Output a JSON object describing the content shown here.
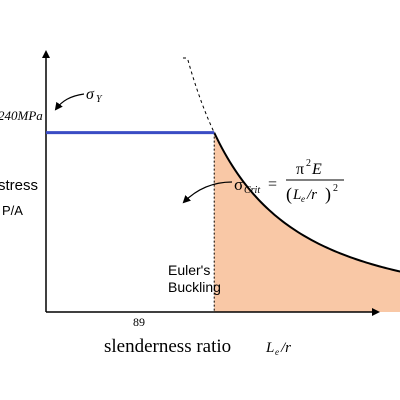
{
  "chart_data": {
    "type": "line",
    "xlabel_text": "slenderness ratio",
    "xlabel_symbol": "L",
    "xlabel_symbol_sub": "e",
    "xlabel_symbol_tail": "/r",
    "ylabel_line1": "stress",
    "ylabel_line2": "P/A",
    "yield_tick_label": "240MPa",
    "x_tick_label": "89",
    "yield_annotation": {
      "symbol": "σ",
      "sub": "Y"
    },
    "euler_formula": {
      "lhs_symbol": "σ",
      "lhs_sub": "Crit",
      "equals": "=",
      "numerator": "π",
      "numerator_sup": "2",
      "numerator_tail": " E",
      "denominator_open": "(",
      "denominator_L": "L",
      "denominator_sub": "e",
      "denominator_tail": "/r",
      "denominator_close": ")",
      "denominator_sup": "2"
    },
    "region_label_line1": "Euler's",
    "region_label_line2": "Buckling",
    "yield_stress": 240,
    "transition_slenderness": 89,
    "x_range": [
      0,
      200
    ],
    "y_range": [
      0,
      380
    ],
    "series": [
      {
        "values": [
          [
            0,
            240
          ],
          [
            89,
            240
          ]
        ]
      },
      {
        "values": [
          [
            89,
            240
          ],
          [
            200,
            47.5
          ]
        ]
      }
    ],
    "colors": {
      "yield_line": "#3a4cc4",
      "euler_fill": "#f9c8a6",
      "curve": "#000000"
    }
  }
}
